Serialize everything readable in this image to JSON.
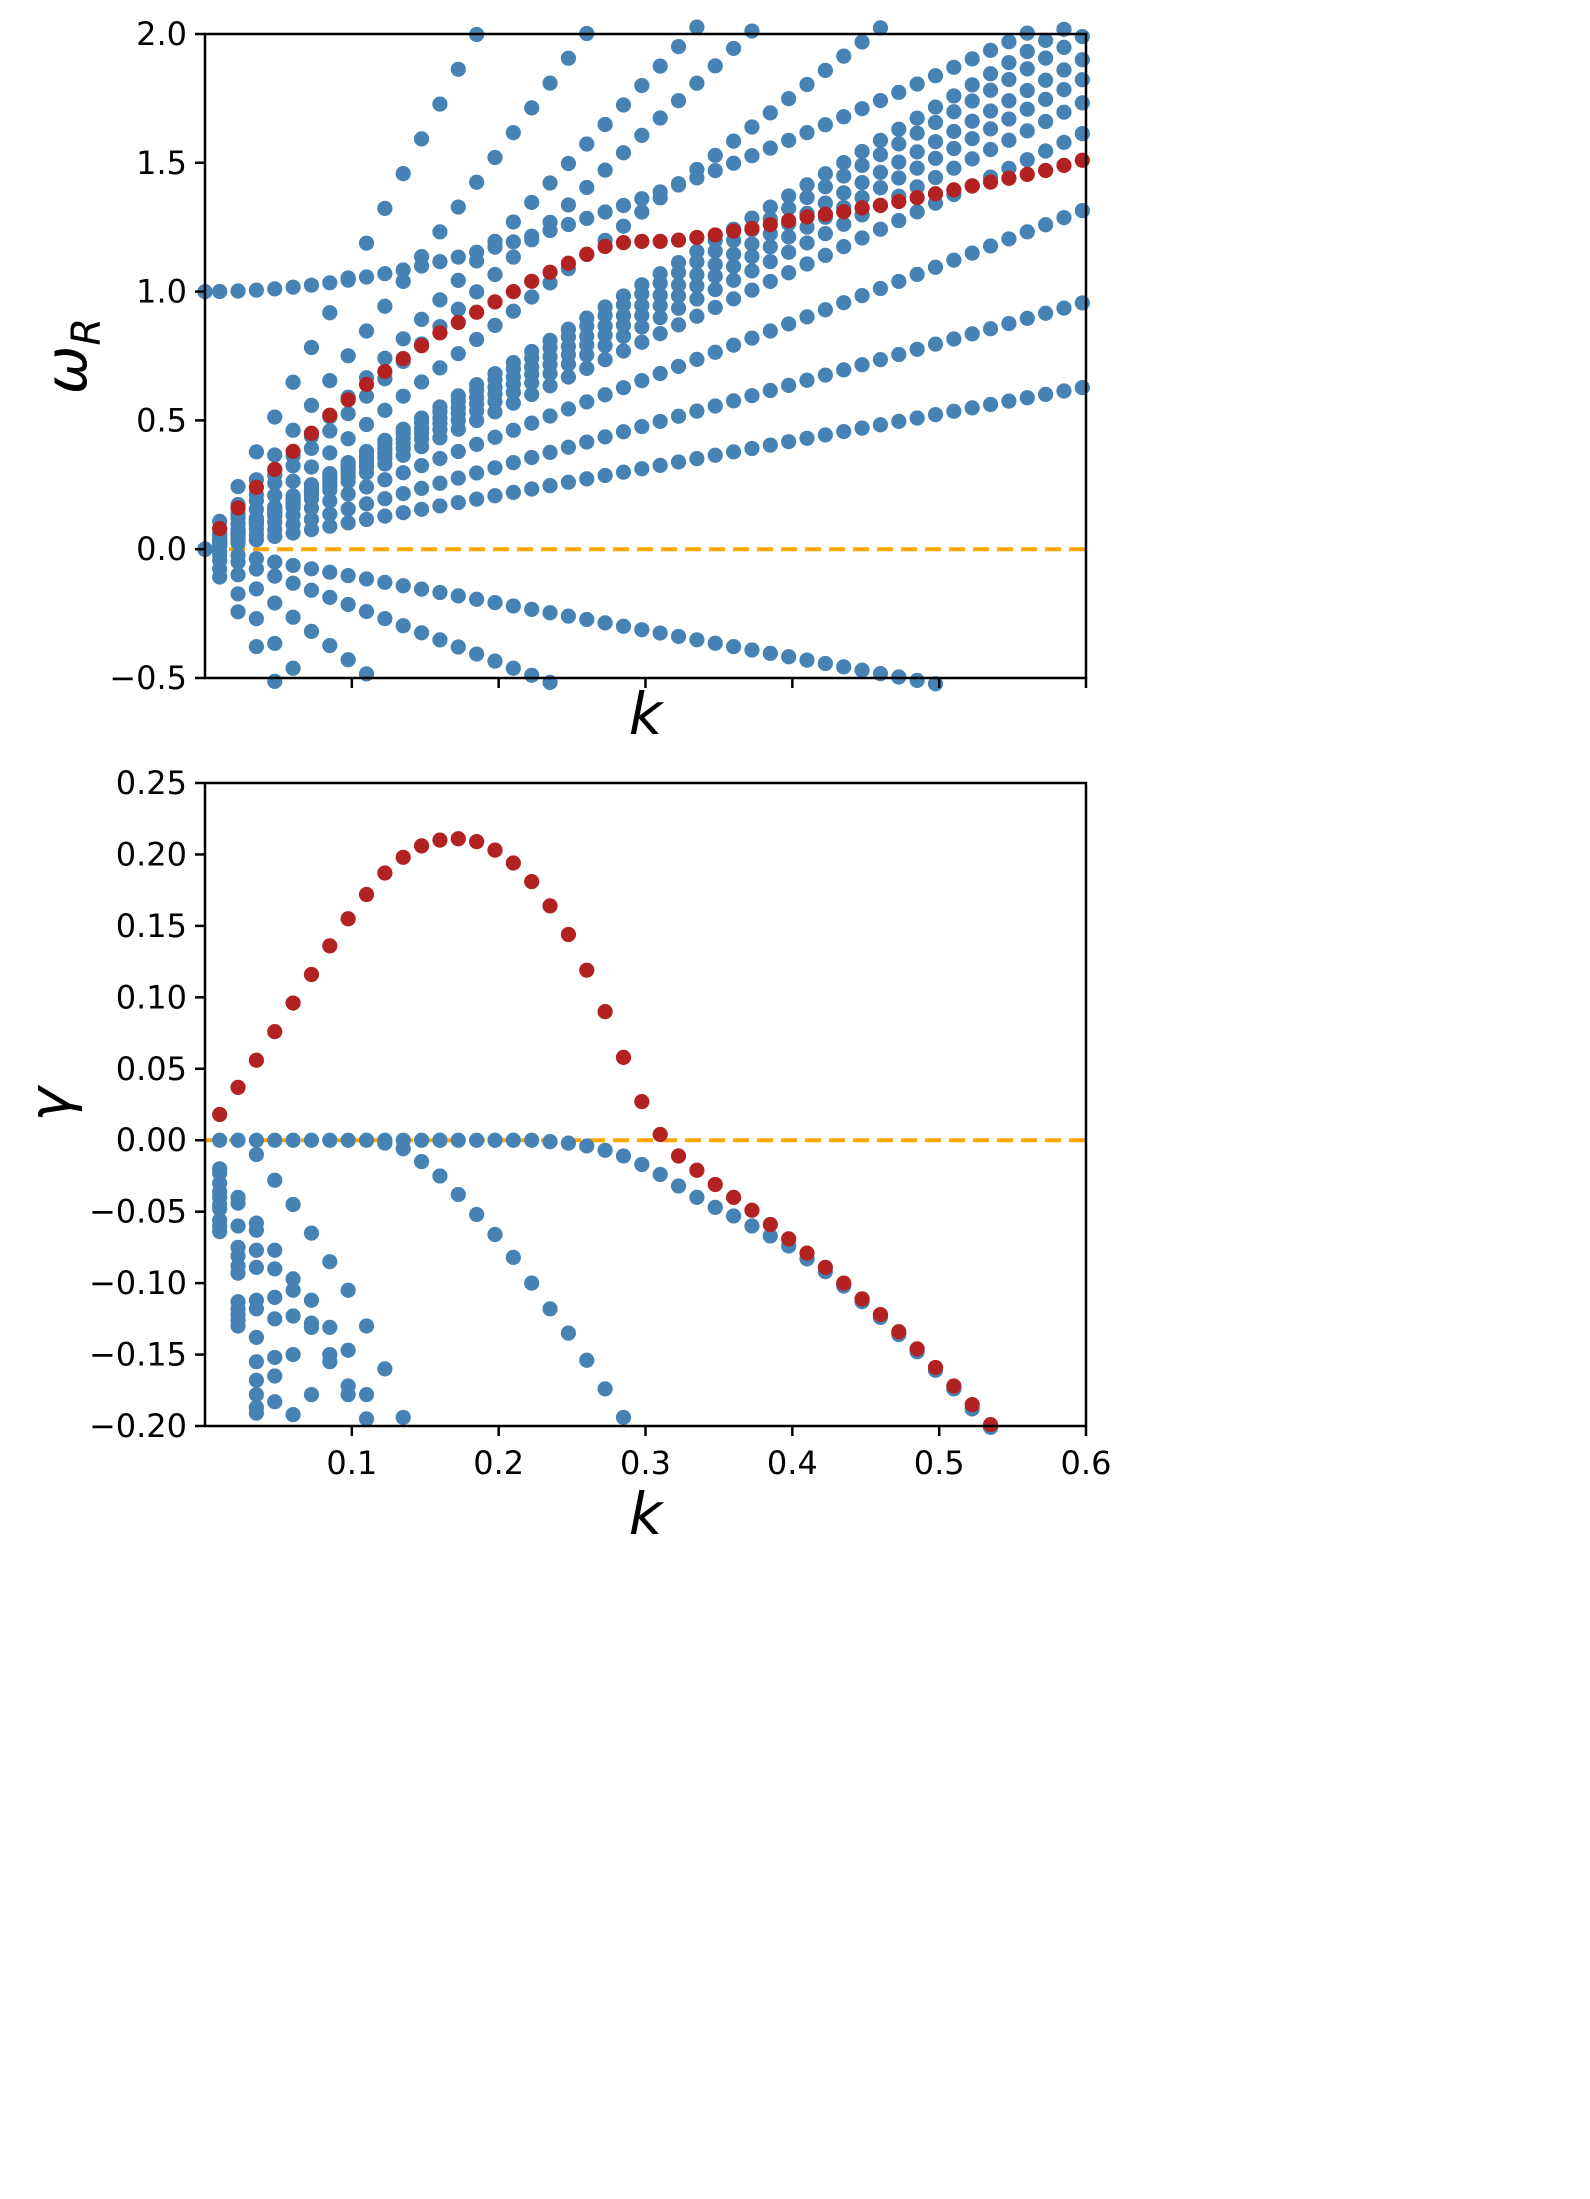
{
  "chart_data": [
    {
      "type": "scatter",
      "panel": "top",
      "xlabel": "k",
      "ylabel": "ω",
      "ylabel_subscript": "R",
      "xlim": [
        0.0,
        0.6
      ],
      "ylim": [
        -0.5,
        2.0
      ],
      "xticks": [
        0.1,
        0.2,
        0.3,
        0.4,
        0.5,
        0.6
      ],
      "xtick_labels_visible": false,
      "yticks": [
        -0.5,
        0.0,
        0.5,
        1.0,
        1.5,
        2.0
      ],
      "ytick_labels": [
        "−0.5",
        "0.0",
        "0.5",
        "1.0",
        "1.5",
        "2.0"
      ],
      "reference_line": {
        "y": 0.0,
        "style": "dashed",
        "color": "#FFA500"
      },
      "k_grid": {
        "start": 0.01,
        "step": 0.0125,
        "count": 48
      },
      "colors": {
        "blue": "#4682B4",
        "red": "#B22222"
      },
      "blue_series": [
        {
          "name": "upper-branch",
          "formula": "sqrt(1+(c*k)^2)",
          "c": 3.1
        },
        {
          "name": "p1",
          "slope": 10.8
        },
        {
          "name": "n1",
          "slope": -10.8
        },
        {
          "name": "p2",
          "slope": 7.7
        },
        {
          "name": "n2",
          "slope": -7.7
        },
        {
          "name": "p3",
          "slope": 6.05
        },
        {
          "name": "p4",
          "slope": 5.4
        },
        {
          "name": "p5",
          "slope": 4.4
        },
        {
          "name": "n5",
          "slope": -4.4
        },
        {
          "name": "p6",
          "slope": 3.45
        },
        {
          "name": "p7",
          "slope": 2.2
        },
        {
          "name": "n7",
          "slope": -2.2
        },
        {
          "name": "p8",
          "slope": 1.05
        },
        {
          "name": "n8",
          "slope": -1.05
        },
        {
          "name": "p9",
          "slope": 1.6
        },
        {
          "name": "p10",
          "slope": 3.33
        },
        {
          "name": "p11",
          "slope": 2.7
        },
        {
          "name": "p12",
          "slope": 3.05
        },
        {
          "name": "p13",
          "slope": 3.18
        },
        {
          "name": "p14",
          "slope": 2.9
        }
      ],
      "red_series": {
        "name": "unstable-mode",
        "k": [
          0.01,
          0.0225,
          0.035,
          0.0475,
          0.06,
          0.0725,
          0.085,
          0.0975,
          0.11,
          0.1225,
          0.135,
          0.1475,
          0.16,
          0.1725,
          0.185,
          0.1975,
          0.21,
          0.2225,
          0.235,
          0.2475,
          0.26,
          0.2725,
          0.285,
          0.2975,
          0.31,
          0.3225,
          0.335,
          0.3475,
          0.36,
          0.3725,
          0.385,
          0.3975,
          0.41,
          0.4225,
          0.435,
          0.4475,
          0.46,
          0.4725,
          0.485,
          0.4975,
          0.51,
          0.5225,
          0.535,
          0.5475,
          0.56,
          0.5725,
          0.585,
          0.5975
        ],
        "omega": [
          0.08,
          0.16,
          0.24,
          0.31,
          0.38,
          0.45,
          0.52,
          0.58,
          0.64,
          0.69,
          0.74,
          0.79,
          0.84,
          0.88,
          0.92,
          0.96,
          1.0,
          1.04,
          1.075,
          1.11,
          1.145,
          1.175,
          1.19,
          1.195,
          1.195,
          1.2,
          1.21,
          1.22,
          1.235,
          1.245,
          1.26,
          1.275,
          1.29,
          1.3,
          1.31,
          1.325,
          1.335,
          1.35,
          1.365,
          1.38,
          1.395,
          1.41,
          1.425,
          1.44,
          1.455,
          1.47,
          1.49,
          1.51
        ]
      }
    },
    {
      "type": "scatter",
      "panel": "bottom",
      "xlabel": "k",
      "ylabel": "γ",
      "xlim": [
        0.0,
        0.6
      ],
      "ylim": [
        -0.2,
        0.25
      ],
      "xticks": [
        0.1,
        0.2,
        0.3,
        0.4,
        0.5,
        0.6
      ],
      "xtick_labels": [
        "0.1",
        "0.2",
        "0.3",
        "0.4",
        "0.5",
        "0.6"
      ],
      "yticks": [
        -0.2,
        -0.15,
        -0.1,
        -0.05,
        0.0,
        0.05,
        0.1,
        0.15,
        0.2,
        0.25
      ],
      "ytick_labels": [
        "−0.20",
        "−0.15",
        "−0.10",
        "−0.05",
        "0.00",
        "0.05",
        "0.10",
        "0.15",
        "0.20",
        "0.25"
      ],
      "reference_line": {
        "y": 0.0,
        "style": "dashed",
        "color": "#FFA500"
      },
      "colors": {
        "blue": "#4682B4",
        "red": "#B22222"
      },
      "red_series": {
        "name": "growth-rate",
        "k": [
          0.01,
          0.0225,
          0.035,
          0.0475,
          0.06,
          0.0725,
          0.085,
          0.0975,
          0.11,
          0.1225,
          0.135,
          0.1475,
          0.16,
          0.1725,
          0.185,
          0.1975,
          0.21,
          0.2225,
          0.235,
          0.2475,
          0.26,
          0.2725,
          0.285,
          0.2975,
          0.31,
          0.3225,
          0.335,
          0.3475,
          0.36,
          0.3725,
          0.385,
          0.3975,
          0.41,
          0.4225,
          0.435,
          0.4475,
          0.46,
          0.4725,
          0.485,
          0.4975,
          0.51,
          0.5225,
          0.535
        ],
        "gamma": [
          0.018,
          0.037,
          0.056,
          0.076,
          0.096,
          0.116,
          0.136,
          0.155,
          0.172,
          0.187,
          0.198,
          0.206,
          0.21,
          0.211,
          0.209,
          0.203,
          0.194,
          0.181,
          0.164,
          0.144,
          0.119,
          0.09,
          0.058,
          0.027,
          0.004,
          -0.011,
          -0.021,
          -0.031,
          -0.04,
          -0.049,
          -0.059,
          -0.069,
          -0.079,
          -0.089,
          -0.1,
          -0.111,
          -0.122,
          -0.134,
          -0.146,
          -0.159,
          -0.172,
          -0.185,
          -0.199
        ]
      },
      "blue_series": [
        {
          "name": "neutral-then-damped",
          "k": [
            0.01,
            0.0225,
            0.035,
            0.0475,
            0.06,
            0.0725,
            0.085,
            0.0975,
            0.11,
            0.1225,
            0.135,
            0.1475,
            0.16,
            0.1725,
            0.185,
            0.1975,
            0.21,
            0.2225,
            0.235,
            0.2475,
            0.26,
            0.2725,
            0.285,
            0.2975,
            0.31,
            0.3225,
            0.335,
            0.3475,
            0.36,
            0.3725,
            0.385,
            0.3975,
            0.41,
            0.4225,
            0.435,
            0.4475,
            0.46,
            0.4725,
            0.485,
            0.4975,
            0.51,
            0.5225,
            0.535
          ],
          "gamma": [
            0.0,
            0.0,
            0.0,
            0.0,
            0.0,
            0.0,
            0.0,
            0.0,
            0.0,
            0.0,
            0.0,
            0.0,
            0.0,
            0.0,
            0.0,
            0.0,
            0.0,
            0.0,
            -0.001,
            -0.002,
            -0.004,
            -0.007,
            -0.011,
            -0.017,
            -0.024,
            -0.032,
            -0.04,
            -0.047,
            -0.053,
            -0.06,
            -0.067,
            -0.074,
            -0.083,
            -0.092,
            -0.102,
            -0.113,
            -0.124,
            -0.136,
            -0.148,
            -0.161,
            -0.174,
            -0.188,
            -0.201
          ]
        },
        {
          "name": "damped-branch-1",
          "k": [
            0.1225,
            0.135,
            0.1475,
            0.16,
            0.1725,
            0.185,
            0.1975,
            0.21,
            0.2225,
            0.235,
            0.2475,
            0.26,
            0.2725,
            0.285
          ],
          "gamma": [
            -0.002,
            -0.006,
            -0.015,
            -0.025,
            -0.038,
            -0.052,
            -0.066,
            -0.082,
            -0.1,
            -0.118,
            -0.135,
            -0.154,
            -0.174,
            -0.194
          ]
        },
        {
          "name": "damped-branch-2",
          "k": [
            0.035,
            0.0475,
            0.06,
            0.0725,
            0.085,
            0.0975,
            0.11,
            0.1225,
            0.135
          ],
          "gamma": [
            -0.01,
            -0.028,
            -0.045,
            -0.065,
            -0.085,
            -0.105,
            -0.13,
            -0.16,
            -0.194
          ]
        },
        {
          "name": "damped-cluster-1",
          "k": [
            0.01,
            0.01,
            0.01,
            0.01,
            0.01,
            0.01,
            0.01,
            0.01,
            0.01,
            0.01,
            0.0225,
            0.0225,
            0.0225,
            0.0225,
            0.0225,
            0.0225,
            0.0225,
            0.0225,
            0.0225,
            0.0225,
            0.0225,
            0.0225
          ],
          "gamma": [
            -0.02,
            -0.023,
            -0.03,
            -0.036,
            -0.04,
            -0.045,
            -0.048,
            -0.056,
            -0.06,
            -0.064,
            -0.04,
            -0.044,
            -0.06,
            -0.075,
            -0.081,
            -0.088,
            -0.093,
            -0.113,
            -0.118,
            -0.122,
            -0.126,
            -0.13
          ]
        },
        {
          "name": "damped-cluster-2",
          "k": [
            0.035,
            0.035,
            0.035,
            0.035,
            0.035,
            0.035,
            0.035,
            0.035,
            0.035,
            0.035,
            0.035,
            0.035,
            0.0475,
            0.0475,
            0.0475,
            0.0475,
            0.0475,
            0.0475,
            0.0475
          ],
          "gamma": [
            -0.058,
            -0.063,
            -0.077,
            -0.089,
            -0.112,
            -0.118,
            -0.138,
            -0.155,
            -0.168,
            -0.178,
            -0.187,
            -0.191,
            -0.077,
            -0.09,
            -0.11,
            -0.125,
            -0.152,
            -0.165,
            -0.183
          ]
        },
        {
          "name": "damped-cluster-3",
          "k": [
            0.06,
            0.06,
            0.06,
            0.06,
            0.06,
            0.0725,
            0.0725,
            0.0725,
            0.0725,
            0.085,
            0.085,
            0.085,
            0.0975,
            0.0975,
            0.0975,
            0.11,
            0.11
          ],
          "gamma": [
            -0.097,
            -0.105,
            -0.123,
            -0.15,
            -0.192,
            -0.112,
            -0.128,
            -0.131,
            -0.178,
            -0.131,
            -0.15,
            -0.155,
            -0.147,
            -0.172,
            -0.178,
            -0.178,
            -0.195
          ]
        }
      ]
    }
  ]
}
